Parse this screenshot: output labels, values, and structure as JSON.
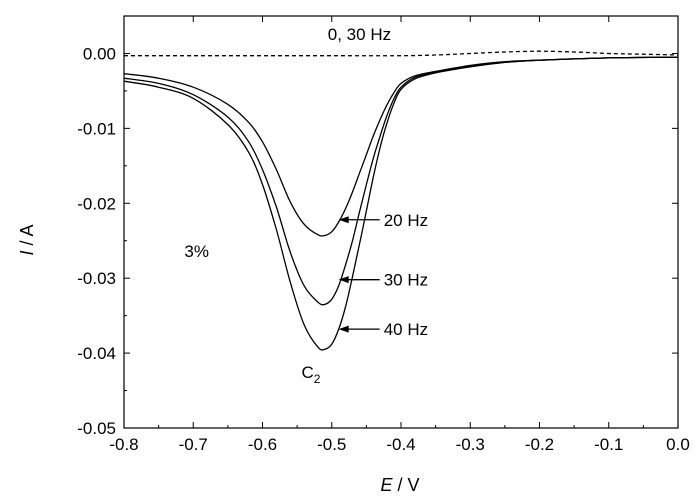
{
  "chart_data": {
    "type": "line",
    "xlabel_italic": "E",
    "xlabel_rest": " / V",
    "ylabel_italic": "I",
    "ylabel_rest": " / A",
    "xlim": [
      -0.8,
      0.0
    ],
    "ylim": [
      -0.05,
      0.005
    ],
    "x_ticks": [
      -0.8,
      -0.7,
      -0.6,
      -0.5,
      -0.4,
      -0.3,
      -0.2,
      -0.1,
      0.0
    ],
    "x_tick_labels": [
      "-0.8",
      "-0.7",
      "-0.6",
      "-0.5",
      "-0.4",
      "-0.3",
      "-0.2",
      "-0.1",
      "0.0"
    ],
    "y_ticks": [
      0.0,
      -0.01,
      -0.02,
      -0.03,
      -0.04,
      -0.05
    ],
    "y_tick_labels": [
      "0.00",
      "-0.01",
      "-0.02",
      "-0.03",
      "-0.04",
      "-0.05"
    ],
    "grid": false,
    "series": [
      {
        "name": "0, 30 Hz",
        "style": "dashed",
        "x": [
          -0.8,
          -0.7,
          -0.6,
          -0.5,
          -0.4,
          -0.35,
          -0.3,
          -0.25,
          -0.2,
          -0.15,
          -0.1,
          -0.05,
          0.0
        ],
        "y": [
          -0.0003,
          -0.0003,
          -0.0003,
          -0.0003,
          -0.0003,
          -0.0002,
          0.0,
          0.0002,
          0.0003,
          0.0002,
          0.0,
          -0.0001,
          -0.0002
        ]
      },
      {
        "name": "20 Hz",
        "style": "solid",
        "x": [
          -0.8,
          -0.75,
          -0.7,
          -0.65,
          -0.62,
          -0.6,
          -0.58,
          -0.56,
          -0.54,
          -0.52,
          -0.51,
          -0.5,
          -0.49,
          -0.48,
          -0.47,
          -0.46,
          -0.45,
          -0.44,
          -0.43,
          -0.42,
          -0.41,
          -0.4,
          -0.38,
          -0.35,
          -0.3,
          -0.25,
          -0.2,
          -0.1,
          0.0
        ],
        "y": [
          -0.0027,
          -0.0033,
          -0.0045,
          -0.0068,
          -0.0092,
          -0.0118,
          -0.0155,
          -0.0198,
          -0.0228,
          -0.0242,
          -0.0243,
          -0.0238,
          -0.0225,
          -0.0207,
          -0.0185,
          -0.016,
          -0.0135,
          -0.011,
          -0.0088,
          -0.0068,
          -0.0052,
          -0.004,
          -0.003,
          -0.0024,
          -0.0016,
          -0.0011,
          -0.0009,
          -0.0006,
          -0.0005
        ]
      },
      {
        "name": "30 Hz",
        "style": "solid",
        "x": [
          -0.8,
          -0.75,
          -0.7,
          -0.65,
          -0.62,
          -0.6,
          -0.58,
          -0.56,
          -0.54,
          -0.52,
          -0.51,
          -0.5,
          -0.49,
          -0.48,
          -0.47,
          -0.46,
          -0.45,
          -0.44,
          -0.43,
          -0.42,
          -0.41,
          -0.4,
          -0.38,
          -0.35,
          -0.3,
          -0.25,
          -0.2,
          -0.1,
          0.0
        ],
        "y": [
          -0.0033,
          -0.004,
          -0.0055,
          -0.0085,
          -0.0118,
          -0.0155,
          -0.0205,
          -0.0265,
          -0.031,
          -0.0332,
          -0.0335,
          -0.0328,
          -0.031,
          -0.0282,
          -0.025,
          -0.0212,
          -0.0175,
          -0.014,
          -0.011,
          -0.0082,
          -0.006,
          -0.0045,
          -0.0032,
          -0.0025,
          -0.0017,
          -0.0012,
          -0.0009,
          -0.0006,
          -0.0005
        ]
      },
      {
        "name": "40 Hz",
        "style": "solid",
        "x": [
          -0.8,
          -0.75,
          -0.7,
          -0.65,
          -0.62,
          -0.6,
          -0.58,
          -0.56,
          -0.54,
          -0.52,
          -0.51,
          -0.5,
          -0.49,
          -0.48,
          -0.47,
          -0.46,
          -0.45,
          -0.44,
          -0.43,
          -0.42,
          -0.41,
          -0.4,
          -0.38,
          -0.35,
          -0.3,
          -0.25,
          -0.2,
          -0.1,
          0.0
        ],
        "y": [
          -0.0037,
          -0.0045,
          -0.006,
          -0.0095,
          -0.0132,
          -0.0175,
          -0.0235,
          -0.0305,
          -0.0362,
          -0.0392,
          -0.0395,
          -0.0388,
          -0.0368,
          -0.0338,
          -0.0298,
          -0.0255,
          -0.021,
          -0.0165,
          -0.0125,
          -0.0092,
          -0.0066,
          -0.0048,
          -0.0034,
          -0.0026,
          -0.0018,
          -0.0012,
          -0.0009,
          -0.0006,
          -0.0005
        ]
      }
    ],
    "annotations": {
      "dashed_label": "0, 30 Hz",
      "percent": "3%",
      "peak_main": "C",
      "peak_sub": "2",
      "arrows": [
        {
          "label": "20 Hz",
          "x": -0.49,
          "y": -0.0222,
          "text_x": -0.425
        },
        {
          "label": "30 Hz",
          "x": -0.49,
          "y": -0.0302,
          "text_x": -0.425
        },
        {
          "label": "40 Hz",
          "x": -0.49,
          "y": -0.0368,
          "text_x": -0.425
        }
      ],
      "peak_label_pos": {
        "x": -0.53,
        "y": -0.0433
      },
      "percent_pos": {
        "x": -0.695,
        "y": -0.0272
      },
      "dashed_label_pos": {
        "x": -0.46,
        "y": 0.0018
      }
    }
  }
}
